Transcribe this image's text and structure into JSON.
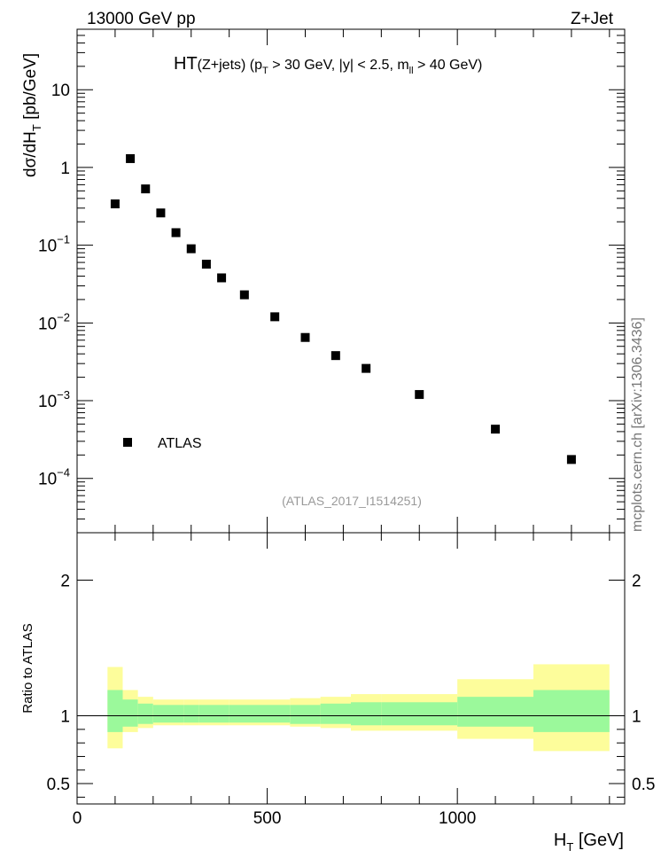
{
  "header": {
    "left_label": "13000 GeV pp",
    "right_label": "Z+Jet"
  },
  "side_label": "mcplots.cern.ch [arXiv:1306.3436]",
  "chart_data": [
    {
      "type": "scatter",
      "title": {
        "main": "HT",
        "rest_a": "(Z+jets) (p",
        "sub_a": "T",
        "rest_b": " > 30 GeV, |y| < 2.5, m",
        "sub_b": "ll",
        "rest_c": " > 40 GeV)"
      },
      "ylabel": {
        "main": "dσ/dH",
        "sub": "T",
        "unit": " [pb/GeV]"
      },
      "yscale": "log",
      "ylim": [
        2e-05,
        60
      ],
      "xlim": [
        0,
        1440
      ],
      "yticks": [
        {
          "value": 10,
          "label": "10",
          "exp": ""
        },
        {
          "value": 1,
          "label": "1",
          "exp": ""
        },
        {
          "value": 0.1,
          "label": "10",
          "exp": "−1"
        },
        {
          "value": 0.01,
          "label": "10",
          "exp": "−2"
        },
        {
          "value": 0.001,
          "label": "10",
          "exp": "−3"
        },
        {
          "value": 0.0001,
          "label": "10",
          "exp": "−4"
        }
      ],
      "legend": {
        "placement": "lower-left",
        "entries": [
          "ATLAS"
        ]
      },
      "annotation": "(ATLAS_2017_I1514251)",
      "series": [
        {
          "name": "ATLAS",
          "x": [
            100,
            140,
            180,
            220,
            260,
            300,
            340,
            380,
            440,
            520,
            600,
            680,
            760,
            900,
            1100,
            1300
          ],
          "y": [
            0.34,
            1.3,
            0.53,
            0.26,
            0.145,
            0.09,
            0.057,
            0.038,
            0.023,
            0.012,
            0.0065,
            0.0038,
            0.0026,
            0.0012,
            0.00043,
            0.000175
          ]
        }
      ]
    },
    {
      "type": "area",
      "ylabel": "Ratio to ATLAS",
      "xlabel": {
        "main": "H",
        "sub": "T",
        "unit": " [GeV]"
      },
      "xlim": [
        0,
        1440
      ],
      "ylim": [
        0.35,
        2.35
      ],
      "yticks": [
        0.5,
        1,
        2
      ],
      "ytick_labels": [
        "0.5",
        "1",
        "2"
      ],
      "xticks": [
        0,
        500,
        1000
      ],
      "xtick_labels": [
        "0",
        "500",
        "1000"
      ],
      "reference_line": 1,
      "bands_color": {
        "inner": "#9bf99b",
        "outer": "#fdfd9b"
      },
      "bins": [
        {
          "lo": 80,
          "hi": 120,
          "inner": [
            0.88,
            1.19
          ],
          "outer": [
            0.76,
            1.36
          ]
        },
        {
          "lo": 120,
          "hi": 160,
          "inner": [
            0.92,
            1.12
          ],
          "outer": [
            0.88,
            1.19
          ]
        },
        {
          "lo": 160,
          "hi": 200,
          "inner": [
            0.94,
            1.09
          ],
          "outer": [
            0.91,
            1.14
          ]
        },
        {
          "lo": 200,
          "hi": 240,
          "inner": [
            0.95,
            1.08
          ],
          "outer": [
            0.93,
            1.12
          ]
        },
        {
          "lo": 240,
          "hi": 280,
          "inner": [
            0.95,
            1.08
          ],
          "outer": [
            0.93,
            1.12
          ]
        },
        {
          "lo": 280,
          "hi": 320,
          "inner": [
            0.95,
            1.08
          ],
          "outer": [
            0.93,
            1.12
          ]
        },
        {
          "lo": 320,
          "hi": 360,
          "inner": [
            0.95,
            1.08
          ],
          "outer": [
            0.93,
            1.12
          ]
        },
        {
          "lo": 360,
          "hi": 400,
          "inner": [
            0.95,
            1.08
          ],
          "outer": [
            0.93,
            1.12
          ]
        },
        {
          "lo": 400,
          "hi": 480,
          "inner": [
            0.95,
            1.08
          ],
          "outer": [
            0.93,
            1.12
          ]
        },
        {
          "lo": 480,
          "hi": 560,
          "inner": [
            0.95,
            1.08
          ],
          "outer": [
            0.93,
            1.12
          ]
        },
        {
          "lo": 560,
          "hi": 640,
          "inner": [
            0.94,
            1.08
          ],
          "outer": [
            0.92,
            1.13
          ]
        },
        {
          "lo": 640,
          "hi": 720,
          "inner": [
            0.94,
            1.09
          ],
          "outer": [
            0.91,
            1.14
          ]
        },
        {
          "lo": 720,
          "hi": 800,
          "inner": [
            0.93,
            1.1
          ],
          "outer": [
            0.89,
            1.16
          ]
        },
        {
          "lo": 800,
          "hi": 1000,
          "inner": [
            0.93,
            1.1
          ],
          "outer": [
            0.89,
            1.16
          ]
        },
        {
          "lo": 1000,
          "hi": 1200,
          "inner": [
            0.92,
            1.14
          ],
          "outer": [
            0.83,
            1.27
          ]
        },
        {
          "lo": 1200,
          "hi": 1400,
          "inner": [
            0.88,
            1.19
          ],
          "outer": [
            0.74,
            1.38
          ]
        }
      ]
    }
  ]
}
